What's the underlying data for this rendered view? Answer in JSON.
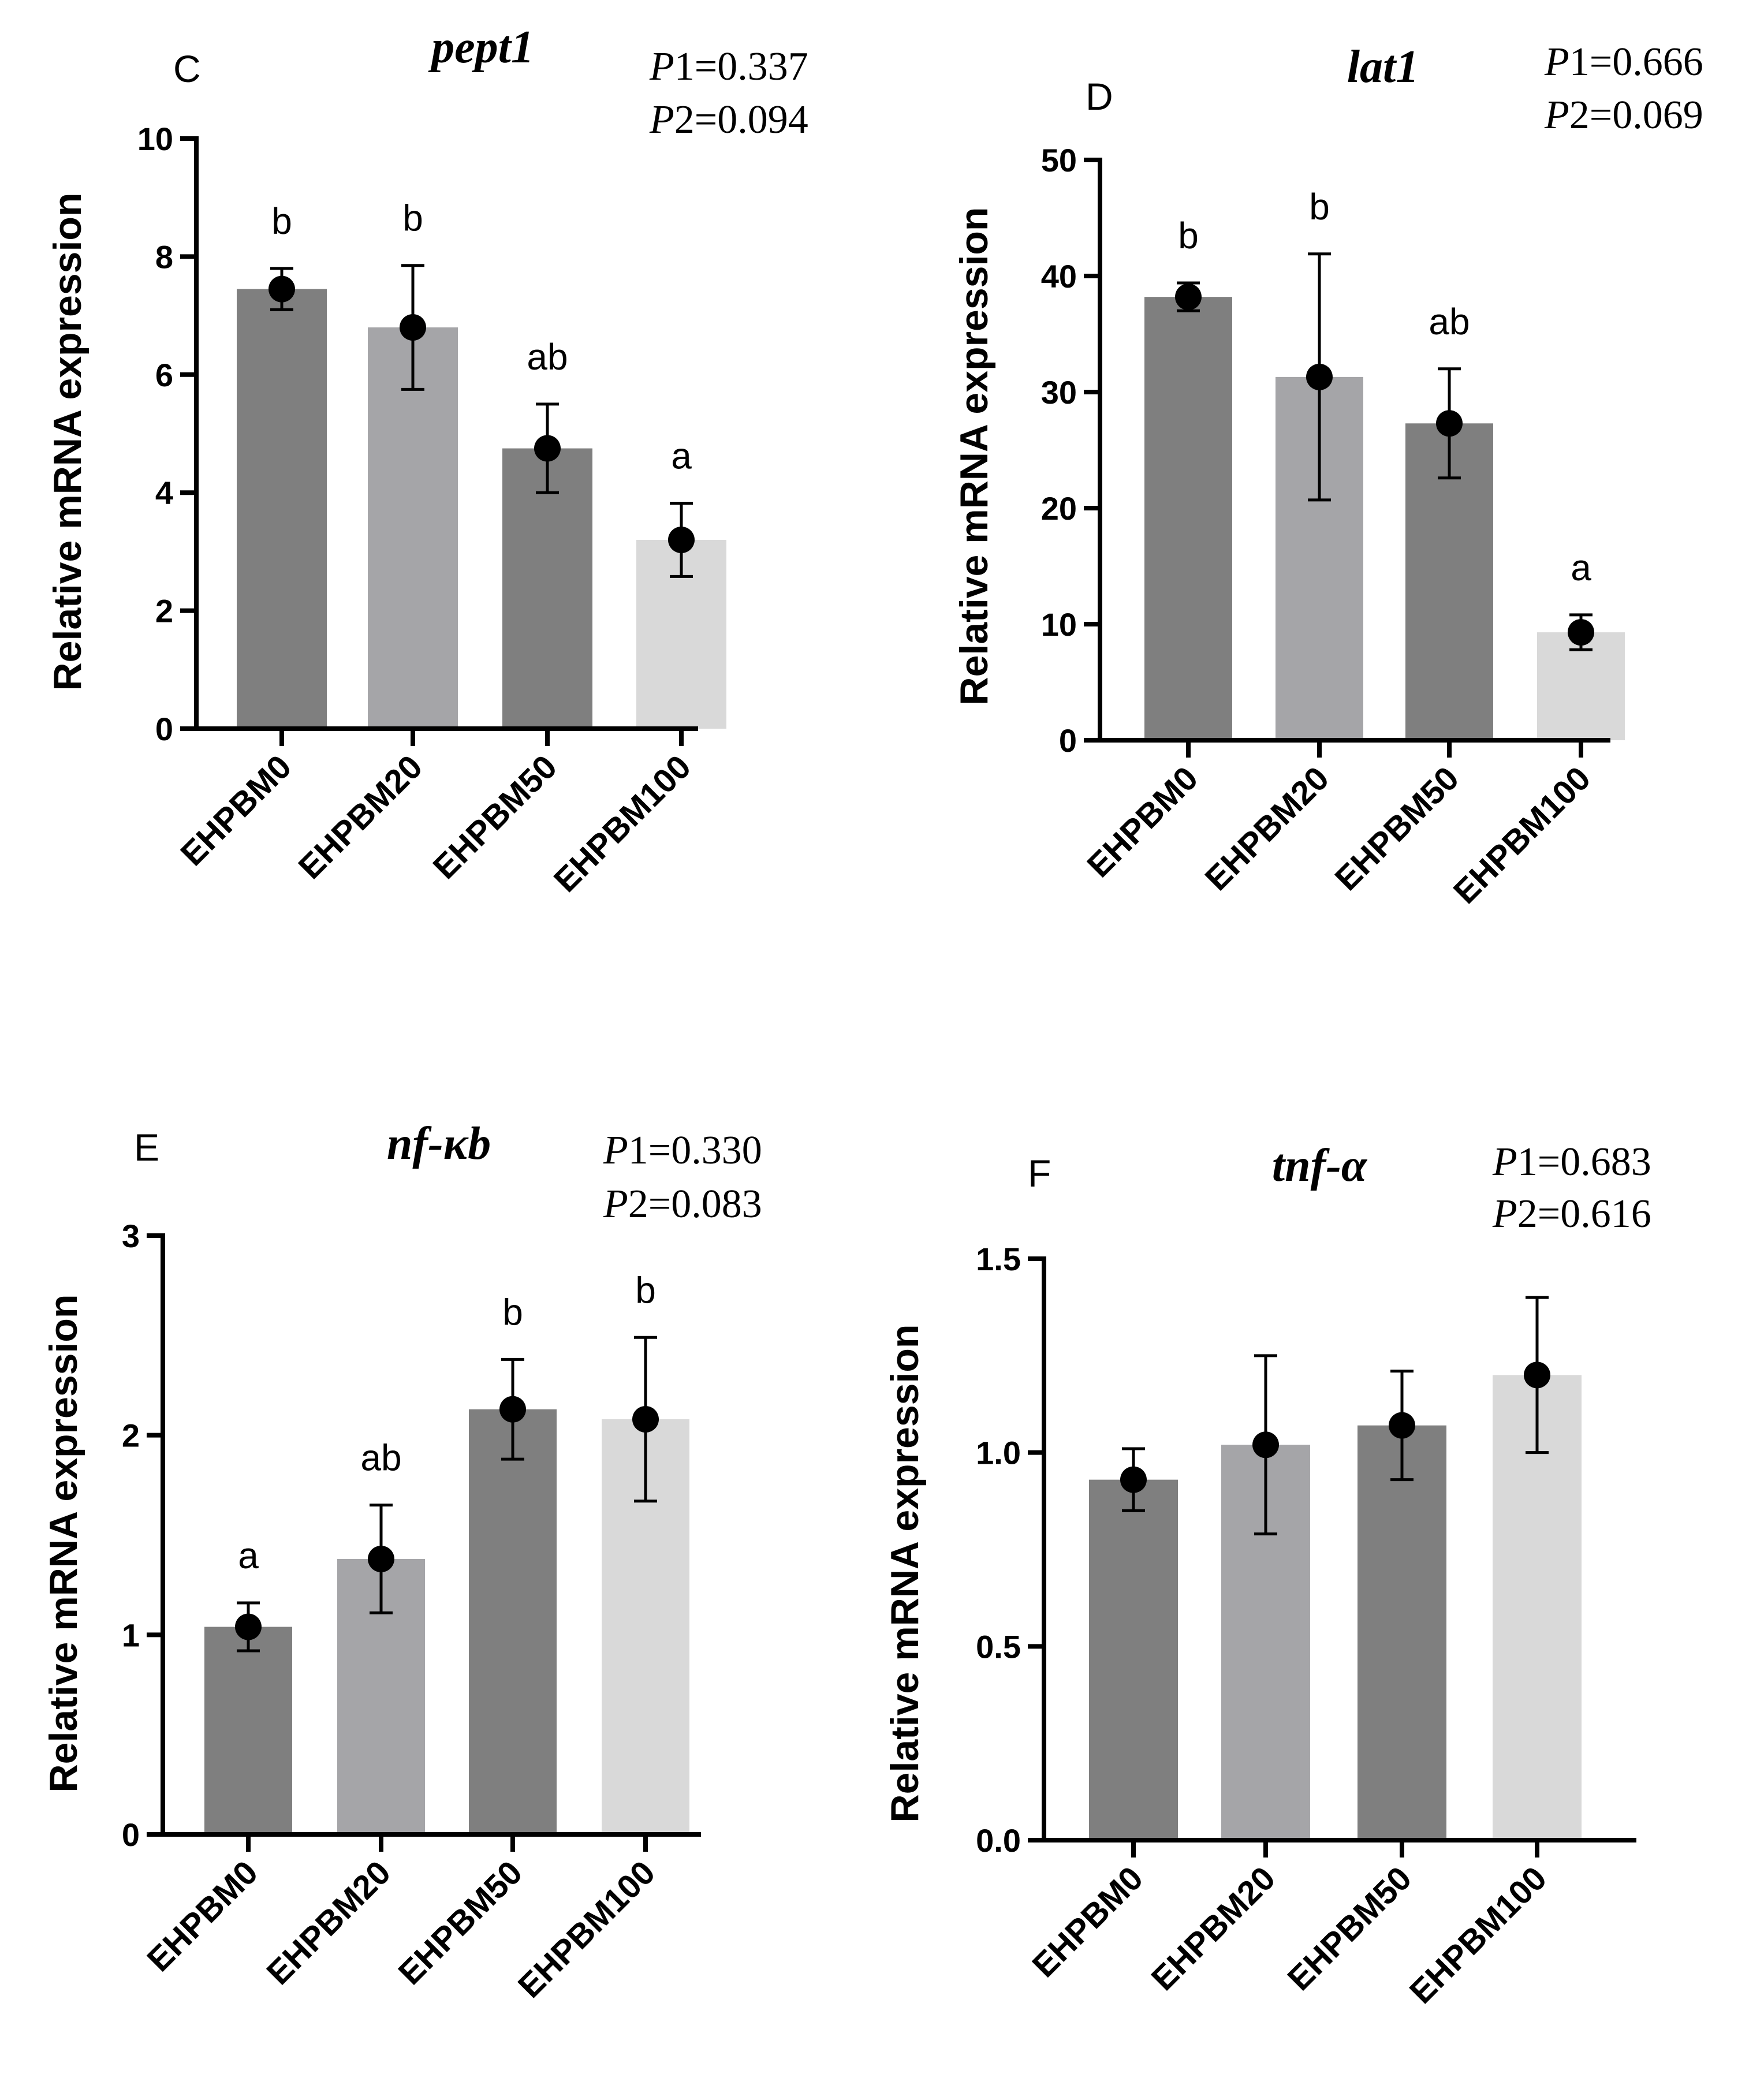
{
  "chart_data": [
    {
      "type": "bar",
      "panel": "C",
      "title": "pept1",
      "p_values": [
        {
          "label": "P",
          "index": "1",
          "value": "0.337"
        },
        {
          "label": "P",
          "index": "2",
          "value": "0.094"
        }
      ],
      "ylabel": "Relative mRNA expression",
      "xlabel": "",
      "ylim": [
        0,
        10
      ],
      "yticks": [
        0,
        2,
        4,
        6,
        8,
        10
      ],
      "ytick_labels": [
        "0",
        "2",
        "4",
        "6",
        "8",
        "10"
      ],
      "categories": [
        "EHPBM0",
        "EHPBM20",
        "EHPBM50",
        "EHPBM100"
      ],
      "values": [
        7.45,
        6.8,
        4.75,
        3.2
      ],
      "errors": [
        0.35,
        1.05,
        0.75,
        0.62
      ],
      "significance": [
        "b",
        "b",
        "ab",
        "a"
      ],
      "bar_colors": [
        "#7f7f7f",
        "#a5a5a8",
        "#7f7f7f",
        "#d9d9d9"
      ]
    },
    {
      "type": "bar",
      "panel": "D",
      "title": "lat1",
      "p_values": [
        {
          "label": "P",
          "index": "1",
          "value": "0.666"
        },
        {
          "label": "P",
          "index": "2",
          "value": "0.069"
        }
      ],
      "ylabel": "Relative mRNA expression",
      "xlabel": "",
      "ylim": [
        0,
        50
      ],
      "yticks": [
        0,
        10,
        20,
        30,
        40,
        50
      ],
      "ytick_labels": [
        "0",
        "10",
        "20",
        "30",
        "40",
        "50"
      ],
      "categories": [
        "EHPBM0",
        "EHPBM20",
        "EHPBM50",
        "EHPBM100"
      ],
      "values": [
        38.2,
        31.3,
        27.3,
        9.3
      ],
      "errors": [
        1.2,
        10.6,
        4.7,
        1.5
      ],
      "significance": [
        "b",
        "b",
        "ab",
        "a"
      ],
      "bar_colors": [
        "#7f7f7f",
        "#a5a5a8",
        "#7f7f7f",
        "#d9d9d9"
      ]
    },
    {
      "type": "bar",
      "panel": "E",
      "title": "nf-κb",
      "p_values": [
        {
          "label": "P",
          "index": "1",
          "value": "0.330"
        },
        {
          "label": "P",
          "index": "2",
          "value": "0.083"
        }
      ],
      "ylabel": "Relative mRNA expression",
      "xlabel": "",
      "ylim": [
        0,
        3
      ],
      "yticks": [
        0,
        1,
        2,
        3
      ],
      "ytick_labels": [
        "0",
        "1",
        "2",
        "3"
      ],
      "categories": [
        "EHPBM0",
        "EHPBM20",
        "EHPBM50",
        "EHPBM100"
      ],
      "values": [
        1.04,
        1.38,
        2.13,
        2.08
      ],
      "errors": [
        0.12,
        0.27,
        0.25,
        0.41
      ],
      "significance": [
        "a",
        "ab",
        "b",
        "b"
      ],
      "bar_colors": [
        "#7f7f7f",
        "#a5a5a8",
        "#7f7f7f",
        "#d9d9d9"
      ]
    },
    {
      "type": "bar",
      "panel": "F",
      "title": "tnf-α",
      "p_values": [
        {
          "label": "P",
          "index": "1",
          "value": "0.683"
        },
        {
          "label": "P",
          "index": "2",
          "value": "0.616"
        }
      ],
      "ylabel": "Relative mRNA expression",
      "xlabel": "",
      "ylim": [
        0,
        1.5
      ],
      "yticks": [
        0,
        0.5,
        1.0,
        1.5
      ],
      "ytick_labels": [
        "0.0",
        "0.5",
        "1.0",
        "1.5"
      ],
      "categories": [
        "EHPBM0",
        "EHPBM20",
        "EHPBM50",
        "EHPBM100"
      ],
      "values": [
        0.93,
        1.02,
        1.07,
        1.2
      ],
      "errors": [
        0.08,
        0.23,
        0.14,
        0.2
      ],
      "significance": [
        "",
        "",
        "",
        ""
      ],
      "bar_colors": [
        "#7f7f7f",
        "#a5a5a8",
        "#7f7f7f",
        "#d9d9d9"
      ]
    }
  ]
}
